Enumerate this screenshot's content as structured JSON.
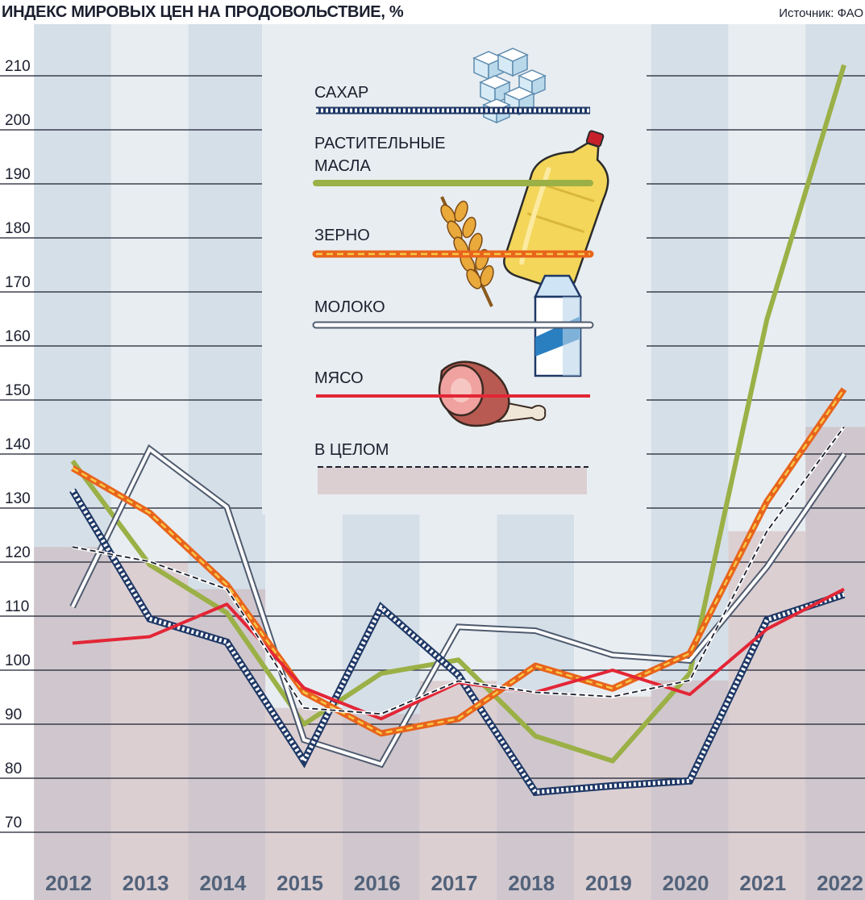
{
  "header": {
    "title": "ИНДЕКС МИРОВЫХ ЦЕН НА ПРОДОВОЛЬСТВИЕ, %",
    "source": "Источник: ФАО"
  },
  "chart_data": {
    "type": "line",
    "title": "ИНДЕКС МИРОВЫХ ЦЕН НА ПРОДОВОЛЬСТВИЕ, %",
    "x": [
      "2012",
      "2013",
      "2014",
      "2015",
      "2016",
      "2017",
      "2018",
      "2019",
      "2020",
      "2021",
      "2022"
    ],
    "y_ticks": [
      70,
      80,
      90,
      100,
      110,
      120,
      130,
      140,
      150,
      160,
      170,
      180,
      190,
      200,
      210
    ],
    "ylim": [
      60,
      220
    ],
    "grid": true,
    "legend_position": "top-center",
    "series": [
      {
        "name": "САХАР",
        "style": "sugar",
        "color": "#1f3866",
        "values": [
          133.3,
          109.5,
          105.2,
          83.2,
          111.6,
          99.1,
          77.4,
          78.6,
          79.5,
          109.3,
          114
        ]
      },
      {
        "name": "РАСТИТЕЛЬНЫЕ МАСЛА",
        "style": "oil",
        "color": "#9bb046",
        "values": [
          138.7,
          119.5,
          110.6,
          90.0,
          99.4,
          101.9,
          87.8,
          83.2,
          99.4,
          164.9,
          212
        ]
      },
      {
        "name": "ЗЕРНО",
        "style": "cereal",
        "color": "#e8641c",
        "values": [
          137.4,
          129.1,
          115.8,
          95.9,
          88.3,
          91.0,
          100.8,
          96.6,
          103.1,
          131.2,
          152
        ]
      },
      {
        "name": "МОЛОКО",
        "style": "dairy",
        "color": "#4f5b6e",
        "values": [
          111.7,
          140.9,
          130.2,
          87.1,
          82.6,
          108.0,
          107.3,
          102.8,
          101.8,
          119.1,
          140
        ]
      },
      {
        "name": "МЯСО",
        "style": "meat",
        "color": "#e32636",
        "values": [
          105.0,
          106.2,
          112.2,
          96.7,
          91.0,
          97.7,
          95.9,
          100.0,
          95.5,
          107.6,
          115
        ]
      },
      {
        "name": "В ЦЕЛОМ",
        "style": "overall",
        "color": "#1b1f2e",
        "values": [
          122.8,
          120.1,
          115.0,
          93.0,
          91.9,
          98.0,
          95.9,
          95.1,
          98.1,
          125.7,
          145
        ]
      }
    ]
  }
}
